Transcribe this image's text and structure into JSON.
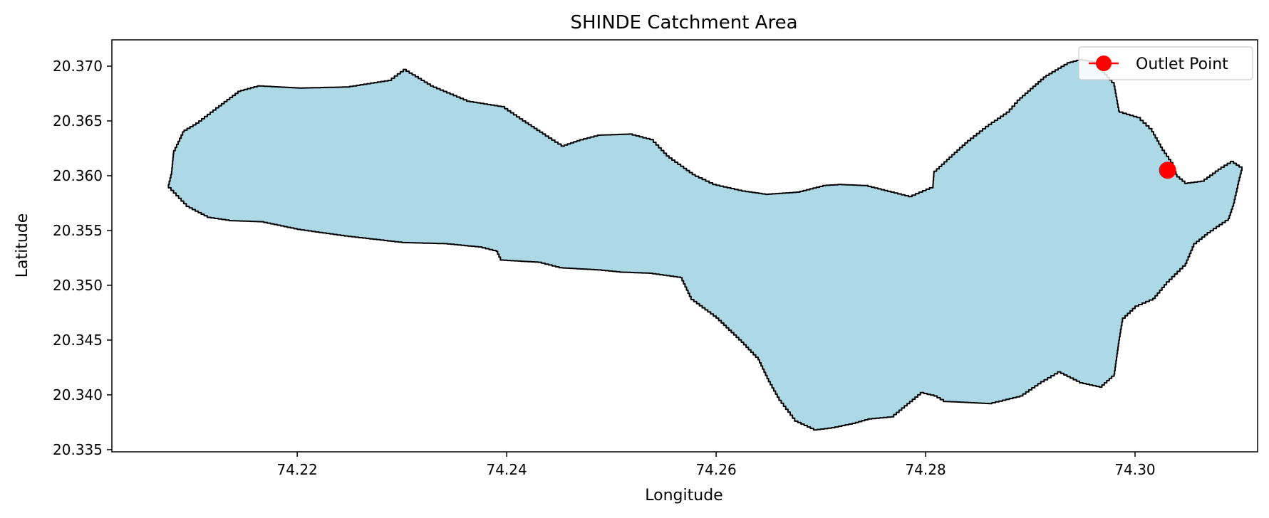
{
  "chart_data": {
    "type": "map",
    "title": "SHINDE Catchment Area",
    "xlabel": "Longitude",
    "ylabel": "Latitude",
    "xlim": [
      74.2023,
      74.3117
    ],
    "ylim": [
      20.3348,
      20.3724
    ],
    "xticks": [
      74.22,
      74.24,
      74.26,
      74.28,
      74.3
    ],
    "xtick_labels": [
      "74.22",
      "74.24",
      "74.26",
      "74.28",
      "74.30"
    ],
    "yticks": [
      20.335,
      20.34,
      20.345,
      20.35,
      20.355,
      20.36,
      20.365,
      20.37
    ],
    "ytick_labels": [
      "20.335",
      "20.340",
      "20.345",
      "20.350",
      "20.355",
      "20.360",
      "20.365",
      "20.370"
    ],
    "grid": false,
    "legend_position": "top-right",
    "legend_entries": [
      {
        "label": "Outlet Point",
        "color": "#ff0000",
        "marker": "circle-line"
      }
    ],
    "catchment": {
      "fill_color": "#add8e6",
      "edge_color": "#000000",
      "boundary": [
        [
          74.2077,
          20.3589
        ],
        [
          74.2094,
          20.3572
        ],
        [
          74.2114,
          20.3562
        ],
        [
          74.2135,
          20.3559
        ],
        [
          74.2165,
          20.3558
        ],
        [
          74.22,
          20.3551
        ],
        [
          74.2245,
          20.3545
        ],
        [
          74.23,
          20.3539
        ],
        [
          74.234,
          20.3538
        ],
        [
          74.2373,
          20.3535
        ],
        [
          74.239,
          20.3531
        ],
        [
          74.2394,
          20.3523
        ],
        [
          74.243,
          20.3521
        ],
        [
          74.245,
          20.3516
        ],
        [
          74.2487,
          20.3514
        ],
        [
          74.2508,
          20.3512
        ],
        [
          74.2536,
          20.3511
        ],
        [
          74.2566,
          20.3507
        ],
        [
          74.2576,
          20.3487
        ],
        [
          74.26,
          20.347
        ],
        [
          74.2624,
          20.3448
        ],
        [
          74.264,
          20.3432
        ],
        [
          74.265,
          20.3412
        ],
        [
          74.266,
          20.3395
        ],
        [
          74.2675,
          20.3376
        ],
        [
          74.2693,
          20.3368
        ],
        [
          74.271,
          20.337
        ],
        [
          74.273,
          20.3374
        ],
        [
          74.2745,
          20.3378
        ],
        [
          74.2767,
          20.338
        ],
        [
          74.2795,
          20.3402
        ],
        [
          74.2808,
          20.3399
        ],
        [
          74.2817,
          20.3394
        ],
        [
          74.284,
          20.3393
        ],
        [
          74.286,
          20.3392
        ],
        [
          74.289,
          20.3399
        ],
        [
          74.291,
          20.3412
        ],
        [
          74.2926,
          20.3421
        ],
        [
          74.2947,
          20.3411
        ],
        [
          74.2966,
          20.3407
        ],
        [
          74.298,
          20.3419
        ],
        [
          74.2985,
          20.3453
        ],
        [
          74.2988,
          20.347
        ],
        [
          74.3,
          20.3481
        ],
        [
          74.3017,
          20.3488
        ],
        [
          74.303,
          20.3503
        ],
        [
          74.3048,
          20.352
        ],
        [
          74.3056,
          20.3538
        ],
        [
          74.3069,
          20.3548
        ],
        [
          74.3089,
          20.3561
        ],
        [
          74.3094,
          20.3575
        ],
        [
          74.3098,
          20.3592
        ],
        [
          74.3102,
          20.3608
        ],
        [
          74.3094,
          20.3613
        ],
        [
          74.3082,
          20.3606
        ],
        [
          74.3066,
          20.3595
        ],
        [
          74.305,
          20.3593
        ],
        [
          74.304,
          20.3601
        ],
        [
          74.3036,
          20.3612
        ],
        [
          74.3026,
          20.3626
        ],
        [
          74.3016,
          20.3643
        ],
        [
          74.3005,
          20.3653
        ],
        [
          74.2985,
          20.3659
        ],
        [
          74.298,
          20.3685
        ],
        [
          74.2962,
          20.3704
        ],
        [
          74.295,
          20.3706
        ],
        [
          74.2938,
          20.3703
        ],
        [
          74.2915,
          20.369
        ],
        [
          74.289,
          20.3669
        ],
        [
          74.288,
          20.3658
        ],
        [
          74.286,
          20.3645
        ],
        [
          74.284,
          20.363
        ],
        [
          74.2825,
          20.3617
        ],
        [
          74.2808,
          20.3602
        ],
        [
          74.2807,
          20.3589
        ],
        [
          74.2787,
          20.3581
        ],
        [
          74.277,
          20.3585
        ],
        [
          74.2745,
          20.3591
        ],
        [
          74.272,
          20.3592
        ],
        [
          74.2705,
          20.3591
        ],
        [
          74.268,
          20.3585
        ],
        [
          74.265,
          20.3583
        ],
        [
          74.2628,
          20.3586
        ],
        [
          74.26,
          20.3592
        ],
        [
          74.258,
          20.3601
        ],
        [
          74.2555,
          20.3618
        ],
        [
          74.254,
          20.3633
        ],
        [
          74.252,
          20.3638
        ],
        [
          74.249,
          20.3637
        ],
        [
          74.247,
          20.3632
        ],
        [
          74.2455,
          20.3627
        ],
        [
          74.2437,
          20.3638
        ],
        [
          74.2418,
          20.365
        ],
        [
          74.2398,
          20.3663
        ],
        [
          74.2365,
          20.3668
        ],
        [
          74.233,
          20.3682
        ],
        [
          74.2304,
          20.3697
        ],
        [
          74.229,
          20.3687
        ],
        [
          74.225,
          20.3681
        ],
        [
          74.2205,
          20.368
        ],
        [
          74.2165,
          20.3682
        ],
        [
          74.2146,
          20.3677
        ],
        [
          74.2125,
          20.3662
        ],
        [
          74.2106,
          20.3648
        ],
        [
          74.2092,
          20.364
        ],
        [
          74.2082,
          20.362
        ],
        [
          74.208,
          20.3601
        ]
      ]
    },
    "outlet_point": {
      "lon": 74.3031,
      "lat": 20.3605,
      "color": "#ff0000"
    }
  }
}
